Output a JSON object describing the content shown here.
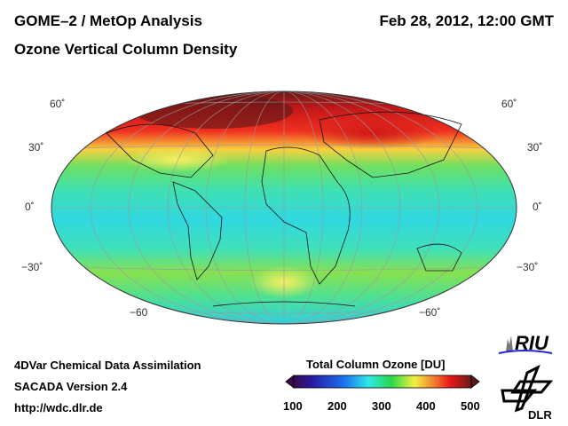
{
  "header": {
    "title": "GOME–2 / MetOp Analysis",
    "subtitle": "Ozone Vertical Column Density",
    "datetime": "Feb 28, 2012, 12:00 GMT"
  },
  "map": {
    "projection": "Hammer-Aitoff (global)",
    "lat_labels_left": [
      "60˚",
      "30˚",
      "0˚",
      "−30˚",
      "−60"
    ],
    "lat_labels_right": [
      "60˚",
      "30˚",
      "0˚",
      "−30˚",
      "−60˚"
    ]
  },
  "footer": {
    "line1": "4DVar Chemical Data Assimilation",
    "line2": "SACADA Version 2.4",
    "url": "http://wdc.dlr.de"
  },
  "colorbar": {
    "title": "Total Column Ozone [DU]",
    "ticks": [
      "100",
      "200",
      "300",
      "400",
      "500"
    ],
    "range": [
      100,
      500
    ],
    "colors": [
      "#3a0a4a",
      "#2a1aa0",
      "#1a6ef0",
      "#2ee8e8",
      "#28d848",
      "#f4f040",
      "#f08a30",
      "#e81818",
      "#6a1a1a"
    ]
  },
  "logos": {
    "riu": "RIU",
    "dlr": "DLR"
  }
}
